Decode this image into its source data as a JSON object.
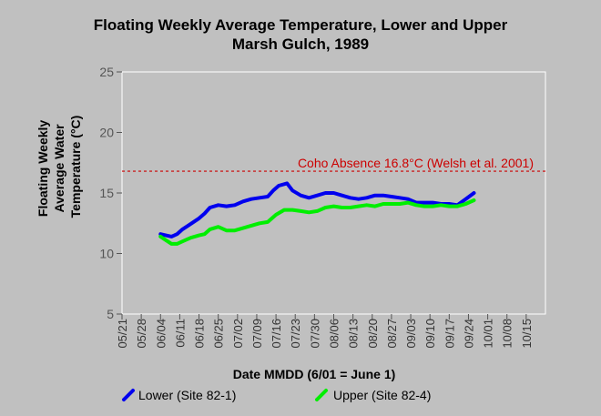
{
  "chart_data": {
    "type": "line",
    "title_line1": "Floating Weekly Average Temperature, Lower and Upper",
    "title_line2": "Marsh Gulch, 1989",
    "xlabel": "Date MMDD (6/01 = June 1)",
    "ylabel_lines": [
      "Floating Weekly",
      "Average Water",
      "Temperature (°C)"
    ],
    "ylim": [
      5,
      25
    ],
    "yticks": [
      5,
      10,
      15,
      20,
      25
    ],
    "x_ticks": [
      "05/21",
      "05/28",
      "06/04",
      "06/11",
      "06/18",
      "06/25",
      "07/02",
      "07/09",
      "07/16",
      "07/23",
      "07/30",
      "08/06",
      "08/13",
      "08/20",
      "08/27",
      "09/03",
      "09/10",
      "09/17",
      "09/24",
      "10/01",
      "10/08",
      "10/15"
    ],
    "grid": false,
    "legend_position": "bottom",
    "reference_line": {
      "y": 16.8,
      "label": "Coho Absence 16.8°C (Welsh et al. 2001)",
      "color": "#cc0000"
    },
    "series": [
      {
        "name": "Lower (Site 82-1)",
        "color": "#0000ee",
        "points": [
          [
            "06/04",
            11.6
          ],
          [
            "06/06",
            11.5
          ],
          [
            "06/08",
            11.4
          ],
          [
            "06/10",
            11.6
          ],
          [
            "06/12",
            12.0
          ],
          [
            "06/14",
            12.3
          ],
          [
            "06/16",
            12.6
          ],
          [
            "06/18",
            12.9
          ],
          [
            "06/20",
            13.3
          ],
          [
            "06/22",
            13.8
          ],
          [
            "06/25",
            14.0
          ],
          [
            "06/28",
            13.9
          ],
          [
            "07/01",
            14.0
          ],
          [
            "07/04",
            14.3
          ],
          [
            "07/07",
            14.5
          ],
          [
            "07/10",
            14.6
          ],
          [
            "07/13",
            14.7
          ],
          [
            "07/15",
            15.2
          ],
          [
            "07/17",
            15.6
          ],
          [
            "07/20",
            15.8
          ],
          [
            "07/22",
            15.2
          ],
          [
            "07/25",
            14.8
          ],
          [
            "07/28",
            14.6
          ],
          [
            "07/31",
            14.8
          ],
          [
            "08/03",
            15.0
          ],
          [
            "08/06",
            15.0
          ],
          [
            "08/09",
            14.8
          ],
          [
            "08/12",
            14.6
          ],
          [
            "08/15",
            14.5
          ],
          [
            "08/18",
            14.6
          ],
          [
            "08/21",
            14.8
          ],
          [
            "08/24",
            14.8
          ],
          [
            "08/27",
            14.7
          ],
          [
            "08/30",
            14.6
          ],
          [
            "09/02",
            14.5
          ],
          [
            "09/05",
            14.2
          ],
          [
            "09/08",
            14.2
          ],
          [
            "09/11",
            14.2
          ],
          [
            "09/14",
            14.1
          ],
          [
            "09/17",
            14.1
          ],
          [
            "09/20",
            14.0
          ],
          [
            "09/23",
            14.5
          ],
          [
            "09/26",
            15.0
          ]
        ]
      },
      {
        "name": "Upper (Site 82-4)",
        "color": "#00ee00",
        "points": [
          [
            "06/04",
            11.4
          ],
          [
            "06/06",
            11.1
          ],
          [
            "06/08",
            10.8
          ],
          [
            "06/10",
            10.8
          ],
          [
            "06/12",
            11.0
          ],
          [
            "06/15",
            11.3
          ],
          [
            "06/18",
            11.5
          ],
          [
            "06/20",
            11.6
          ],
          [
            "06/22",
            12.0
          ],
          [
            "06/25",
            12.2
          ],
          [
            "06/28",
            11.9
          ],
          [
            "07/01",
            11.9
          ],
          [
            "07/04",
            12.1
          ],
          [
            "07/07",
            12.3
          ],
          [
            "07/10",
            12.5
          ],
          [
            "07/13",
            12.6
          ],
          [
            "07/16",
            13.2
          ],
          [
            "07/19",
            13.6
          ],
          [
            "07/22",
            13.6
          ],
          [
            "07/25",
            13.5
          ],
          [
            "07/28",
            13.4
          ],
          [
            "07/31",
            13.5
          ],
          [
            "08/03",
            13.8
          ],
          [
            "08/06",
            13.9
          ],
          [
            "08/09",
            13.8
          ],
          [
            "08/12",
            13.8
          ],
          [
            "08/15",
            13.9
          ],
          [
            "08/18",
            14.0
          ],
          [
            "08/21",
            13.9
          ],
          [
            "08/24",
            14.1
          ],
          [
            "08/27",
            14.1
          ],
          [
            "08/30",
            14.1
          ],
          [
            "09/02",
            14.2
          ],
          [
            "09/05",
            14.0
          ],
          [
            "09/08",
            13.9
          ],
          [
            "09/11",
            13.9
          ],
          [
            "09/14",
            14.0
          ],
          [
            "09/17",
            13.9
          ],
          [
            "09/20",
            13.9
          ],
          [
            "09/23",
            14.1
          ],
          [
            "09/26",
            14.4
          ]
        ]
      }
    ]
  }
}
